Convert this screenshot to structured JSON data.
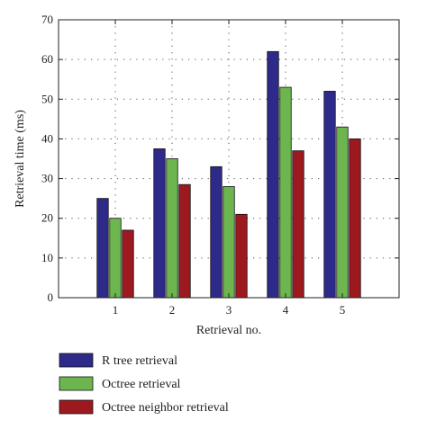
{
  "chart_data": {
    "type": "bar",
    "title": "",
    "xlabel": "Retrieval no.",
    "ylabel": "Retrieval time (ms)",
    "categories": [
      "1",
      "2",
      "3",
      "4",
      "5"
    ],
    "ylim": [
      0,
      70
    ],
    "yticks": [
      0,
      10,
      20,
      30,
      40,
      50,
      60,
      70
    ],
    "grid": true,
    "legend_position": "bottom",
    "series": [
      {
        "name": "R tree retrieval",
        "color": "#2e2a8a",
        "values": [
          25,
          37.5,
          33,
          62,
          52
        ]
      },
      {
        "name": "Octree retrieval",
        "color": "#6db54f",
        "values": [
          20,
          35,
          28,
          53,
          43
        ]
      },
      {
        "name": "Octree neighbor retrieval",
        "color": "#9c1a1f",
        "values": [
          17,
          28.5,
          21,
          37,
          40
        ]
      }
    ]
  }
}
